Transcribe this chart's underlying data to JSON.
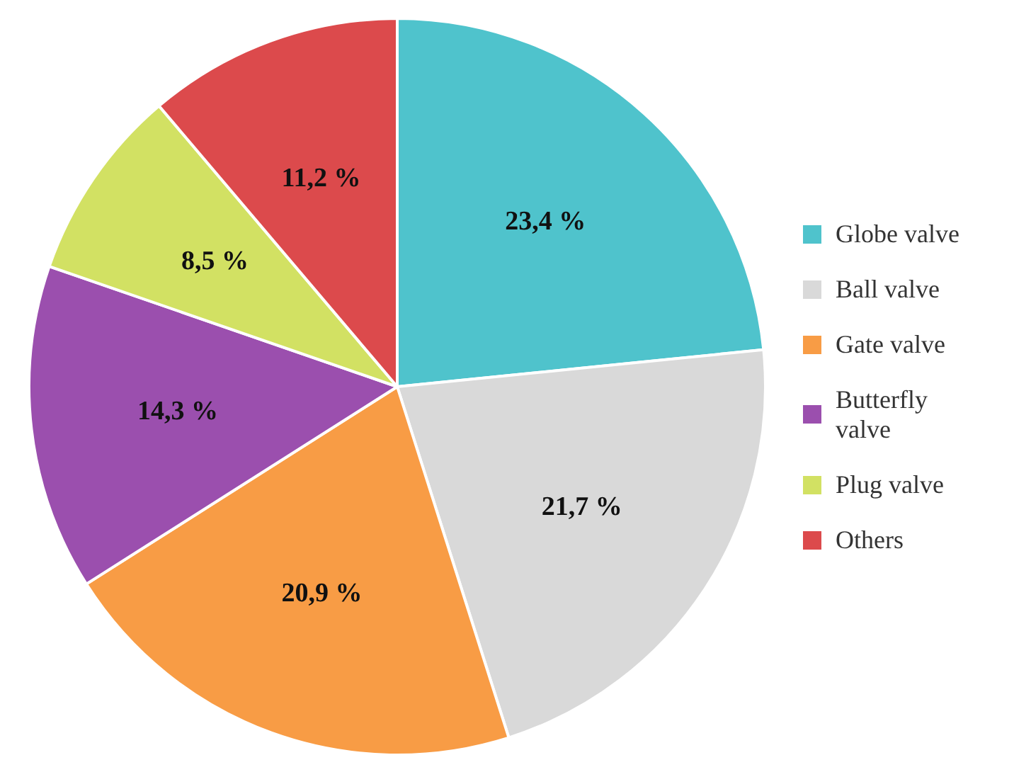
{
  "chart_data": {
    "type": "pie",
    "categories": [
      "Globe valve",
      "Ball valve",
      "Gate valve",
      "Butterfly valve",
      "Plug valve",
      "Others"
    ],
    "values": [
      23.4,
      21.7,
      20.9,
      14.3,
      8.5,
      11.2
    ],
    "value_labels": [
      "23,4 %",
      "21,7 %",
      "20,9 %",
      "14,3 %",
      "8,5 %",
      "11,2 %"
    ],
    "colors": [
      "#4fc3cc",
      "#d9d9d9",
      "#f89c45",
      "#9b4fae",
      "#d2e163",
      "#dc4a4c"
    ],
    "legend": "right"
  }
}
